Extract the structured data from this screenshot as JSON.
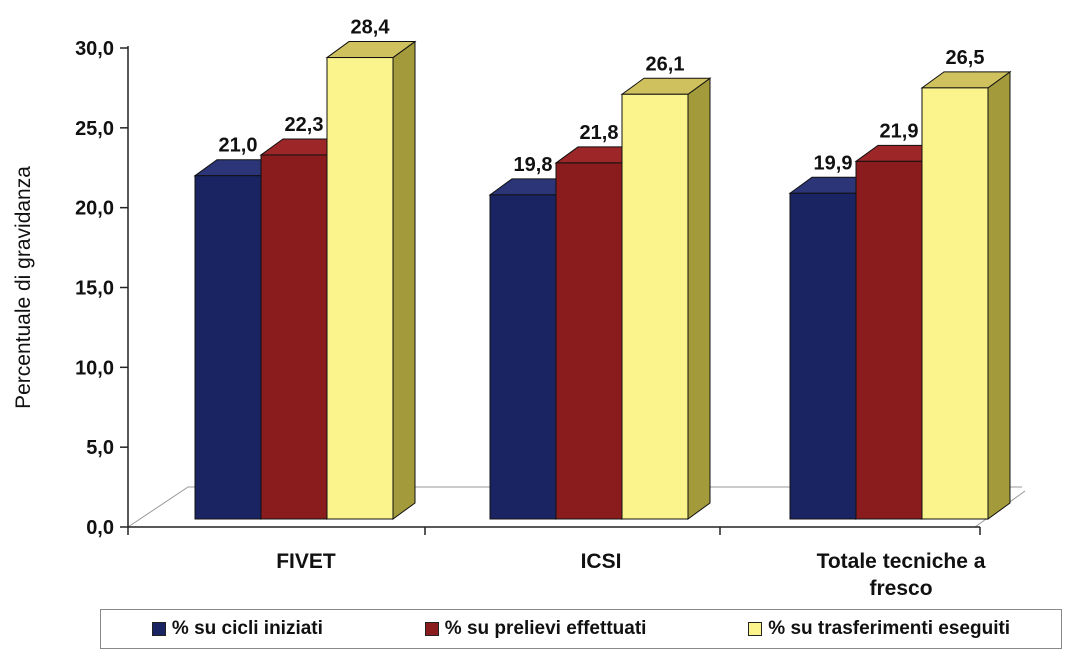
{
  "chart_data": {
    "type": "bar",
    "title": "",
    "xlabel": "",
    "ylabel": "Percentuale di gravidanza",
    "ylim": [
      0,
      30
    ],
    "yticks": [
      "0,0",
      "5,0",
      "10,0",
      "15,0",
      "20,0",
      "25,0",
      "30,0"
    ],
    "categories": [
      [
        "FIVET"
      ],
      [
        "ICSI"
      ],
      [
        "Totale tecniche a",
        "fresco"
      ]
    ],
    "series": [
      {
        "name": "% su cicli iniziati",
        "color": "#1b2462",
        "side": "#0e1540",
        "top": "#2b3578",
        "values": [
          21.0,
          19.8,
          19.9
        ],
        "labels": [
          "21,0",
          "19,8",
          "19,9"
        ]
      },
      {
        "name": "% su prelievi effettuati",
        "color": "#8a1c1e",
        "side": "#5a0f11",
        "top": "#9c2628",
        "values": [
          22.3,
          21.8,
          21.9
        ],
        "labels": [
          "22,3",
          "21,8",
          "21,9"
        ]
      },
      {
        "name": "% su trasferimenti eseguiti",
        "color": "#fbf38c",
        "side": "#a39a3c",
        "top": "#cfc25e",
        "values": [
          28.4,
          26.1,
          26.5
        ],
        "labels": [
          "28,4",
          "26,1",
          "26,5"
        ]
      }
    ],
    "grid": false,
    "three_d": true,
    "legend_position": "bottom"
  }
}
